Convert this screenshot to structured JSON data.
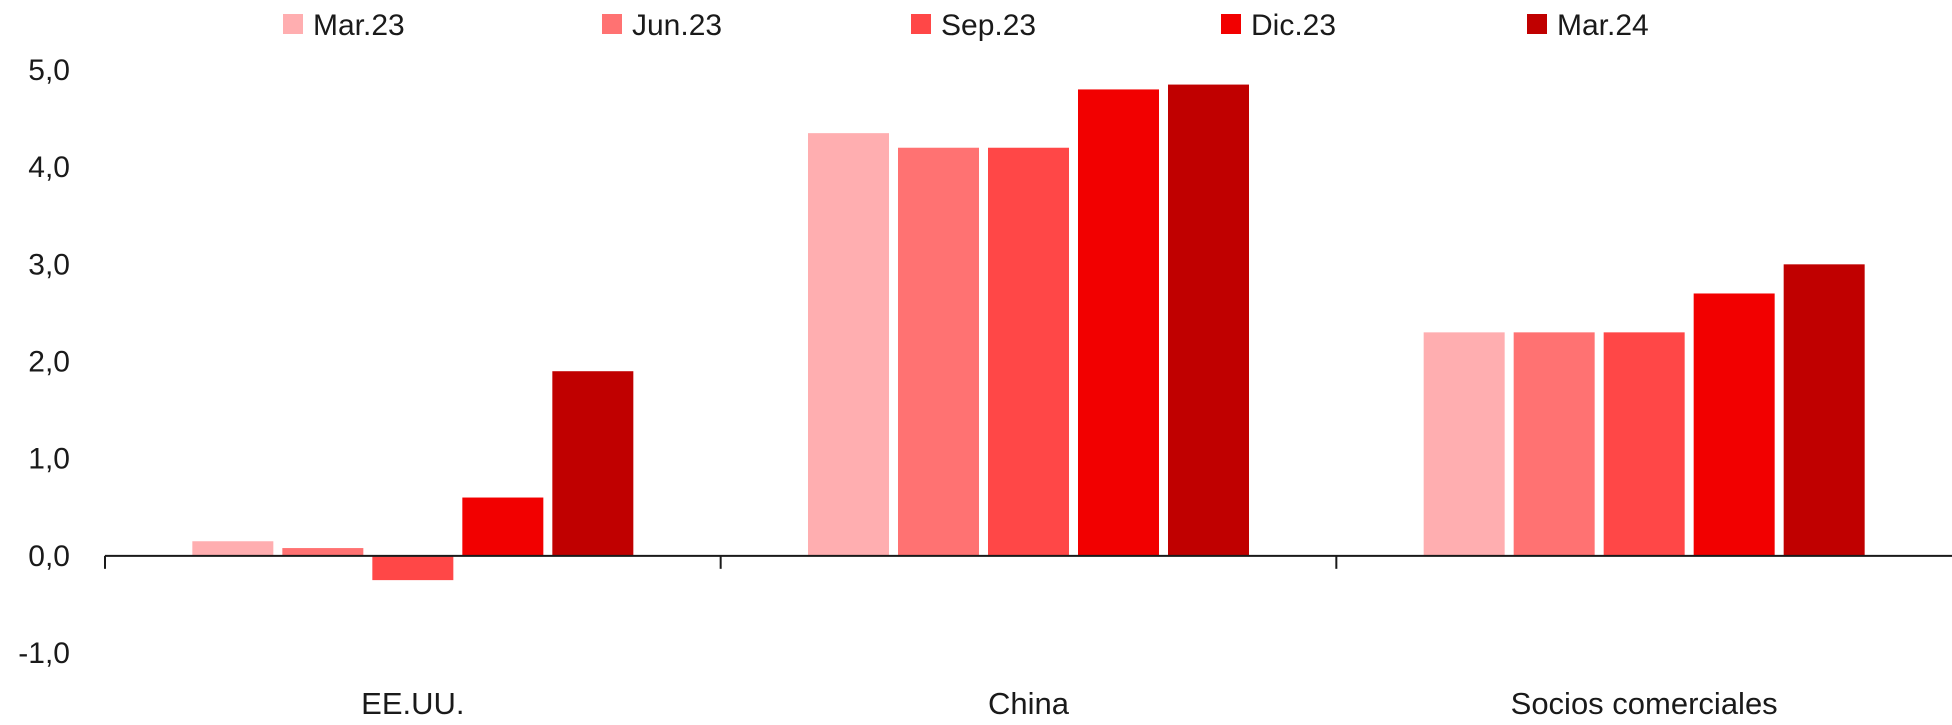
{
  "chart_data": {
    "type": "bar",
    "title": "",
    "xlabel": "",
    "ylabel": "",
    "categories": [
      "EE.UU.",
      "China",
      "Socios comerciales"
    ],
    "series": [
      {
        "name": "Mar.23",
        "color": "#ffaeb0",
        "values": [
          0.15,
          4.35,
          2.3
        ]
      },
      {
        "name": "Jun.23",
        "color": "#ff7272",
        "values": [
          0.08,
          4.2,
          2.3
        ]
      },
      {
        "name": "Sep.23",
        "color": "#ff4747",
        "values": [
          -0.25,
          4.2,
          2.3
        ]
      },
      {
        "name": "Dic.23",
        "color": "#f20000",
        "values": [
          0.6,
          4.8,
          2.7
        ]
      },
      {
        "name": "Mar.24",
        "color": "#c00000",
        "values": [
          1.9,
          4.85,
          3.0
        ]
      }
    ],
    "ylim": [
      -1.0,
      5.0
    ],
    "yticks": [
      -1.0,
      0.0,
      1.0,
      2.0,
      3.0,
      4.0,
      5.0
    ],
    "ytick_labels": [
      "-1,0",
      "0,0",
      "1,0",
      "2,0",
      "3,0",
      "4,0",
      "5,0"
    ],
    "grid": false,
    "legend": "top"
  }
}
